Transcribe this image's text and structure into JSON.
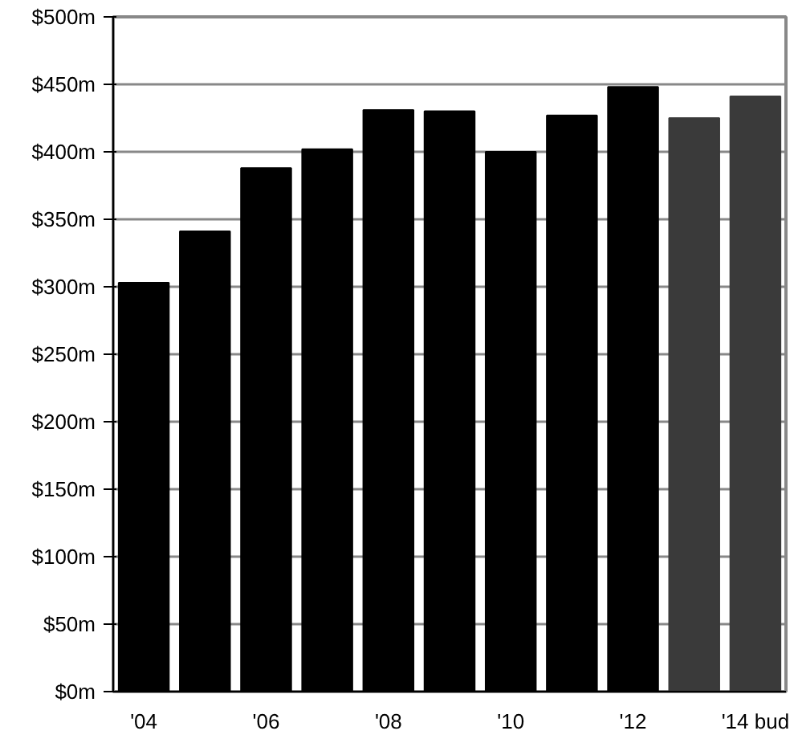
{
  "chart_data": {
    "type": "bar",
    "categories": [
      "'04",
      null,
      "'06",
      null,
      "'08",
      null,
      "'10",
      null,
      "'12",
      null,
      "'14 bud"
    ],
    "values": [
      303,
      341,
      388,
      402,
      431,
      430,
      400,
      427,
      448,
      425,
      441
    ],
    "colors": [
      "#000000",
      "#000000",
      "#000000",
      "#000000",
      "#000000",
      "#000000",
      "#000000",
      "#000000",
      "#000000",
      "#3a3a3a",
      "#3a3a3a"
    ],
    "ylim": [
      0,
      500
    ],
    "yticks": [
      {
        "value": 0,
        "label": "$0m"
      },
      {
        "value": 50,
        "label": "$50m"
      },
      {
        "value": 100,
        "label": "$100m"
      },
      {
        "value": 150,
        "label": "$150m"
      },
      {
        "value": 200,
        "label": "$200m"
      },
      {
        "value": 250,
        "label": "$250m"
      },
      {
        "value": 300,
        "label": "$300m"
      },
      {
        "value": 350,
        "label": "$350m"
      },
      {
        "value": 400,
        "label": "$400m"
      },
      {
        "value": 450,
        "label": "$450m"
      },
      {
        "value": 500,
        "label": "$500m"
      }
    ],
    "grid": "y"
  }
}
